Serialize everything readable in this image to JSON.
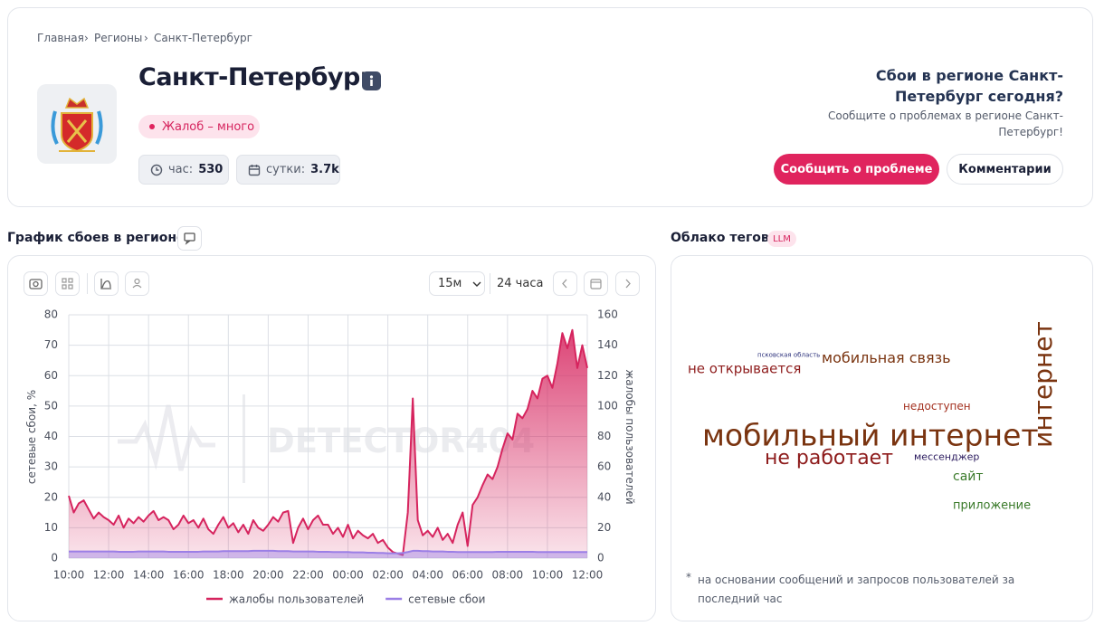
{
  "breadcrumbs": [
    "Главная",
    "Регионы",
    "Санкт-Петербург"
  ],
  "region": {
    "title": "Санкт-Петербург",
    "status": "Жалоб – много",
    "stats": [
      {
        "label": "час:",
        "value": 530
      },
      {
        "label": "сутки:",
        "value": "3.7k"
      }
    ]
  },
  "report": {
    "question": "Сбои в регионе Санкт-Петербург сегодня?",
    "text": "Сообщите о проблемах в регионе Санкт-Петербург!",
    "buttons": [
      "Сообщить о проблеме",
      "Комментарии"
    ]
  },
  "chart_section": {
    "title": "График сбоев в регионе",
    "interval": "15м",
    "range": "24 часа"
  },
  "chart_data": {
    "type": "line",
    "watermark": "DETECTOR404",
    "ylabel": "сетевые сбои, %",
    "y2label": "жалобы пользователей",
    "categories": [
      "10:00",
      null,
      null,
      null,
      null,
      null,
      null,
      null,
      "12:00",
      null,
      null,
      null,
      null,
      null,
      null,
      null,
      "14:00",
      null,
      null,
      null,
      null,
      null,
      null,
      null,
      "16:00",
      null,
      null,
      null,
      null,
      null,
      null,
      null,
      "18:00",
      null,
      null,
      null,
      null,
      null,
      null,
      null,
      "20:00",
      null,
      null,
      null,
      null,
      null,
      null,
      null,
      "22:00",
      null,
      null,
      null,
      null,
      null,
      null,
      null,
      "00:00",
      null,
      null,
      null,
      null,
      null,
      null,
      null,
      "02:00",
      null,
      null,
      null,
      null,
      null,
      null,
      null,
      "04:00",
      null,
      null,
      null,
      null,
      null,
      null,
      null,
      "06:00",
      null,
      null,
      null,
      null,
      null,
      null,
      null,
      "08:00",
      null,
      null,
      null,
      null,
      null,
      null,
      null,
      "10:00",
      null,
      null,
      null,
      null,
      null,
      null,
      null,
      "12:00"
    ],
    "series": [
      {
        "name": "жалобы пользователей",
        "color": "#d6245e",
        "axis": "y2",
        "values": [
          41,
          30,
          36,
          38,
          32,
          26,
          30,
          27,
          25,
          22,
          28,
          20,
          26,
          23,
          27,
          24,
          28,
          31,
          25,
          27,
          25,
          19,
          22,
          28,
          23,
          25,
          20,
          26,
          19,
          16,
          22,
          27,
          20,
          23,
          17,
          22,
          16,
          25,
          20,
          18,
          22,
          27,
          24,
          30,
          31,
          10,
          20,
          26,
          19,
          25,
          28,
          22,
          22,
          16,
          20,
          14,
          22,
          13,
          18,
          15,
          13,
          16,
          10,
          12,
          7,
          4,
          3,
          2,
          30,
          105,
          25,
          15,
          18,
          14,
          20,
          12,
          16,
          10,
          22,
          30,
          8,
          35,
          40,
          48,
          55,
          52,
          60,
          72,
          82,
          78,
          95,
          92,
          98,
          110,
          105,
          118,
          120,
          112,
          128,
          148,
          138,
          150,
          125,
          140,
          125
        ]
      },
      {
        "name": "сетевые сбои",
        "color": "#9b7fe6",
        "axis": "y",
        "values": [
          2.2,
          2.2,
          2.2,
          2.2,
          2.2,
          2.2,
          2.2,
          2.2,
          2.2,
          2.2,
          2.1,
          2.1,
          2.1,
          2.1,
          2.2,
          2.2,
          2.2,
          2.2,
          2.2,
          2.2,
          2.1,
          2.1,
          2.1,
          2.1,
          2.1,
          2.1,
          2.1,
          2.2,
          2.2,
          2.2,
          2.2,
          2.3,
          2.3,
          2.3,
          2.3,
          2.3,
          2.3,
          2.4,
          2.4,
          2.4,
          2.4,
          2.4,
          2.3,
          2.3,
          2.3,
          2.2,
          2.2,
          2.2,
          2.2,
          2.2,
          2.1,
          2.1,
          2.1,
          2.0,
          2.0,
          2.0,
          2.0,
          1.9,
          1.9,
          1.9,
          1.8,
          1.8,
          1.7,
          1.7,
          1.6,
          1.6,
          1.6,
          1.7,
          2.0,
          2.4,
          2.4,
          2.3,
          2.3,
          2.2,
          2.2,
          2.2,
          2.1,
          2.1,
          2.0,
          2.0,
          2.0,
          2.0,
          2.0,
          2.0,
          2.0,
          2.0,
          2.1,
          2.1,
          2.1,
          2.1,
          2.1,
          2.1,
          2.1,
          2.1,
          2.0,
          2.0,
          2.0,
          2.0,
          2.0,
          2.0,
          2.0,
          2.0,
          2.0,
          2.0,
          2.0
        ]
      }
    ],
    "ylim": [
      0,
      80
    ],
    "yticks": [
      0,
      10,
      20,
      30,
      40,
      50,
      60,
      70,
      80
    ],
    "y2lim": [
      0,
      160
    ],
    "y2ticks": [
      0,
      20,
      40,
      60,
      80,
      100,
      120,
      140,
      160
    ],
    "grid": true
  },
  "tag_cloud": {
    "title": "Облако тегов",
    "badge": "LLM",
    "tags": [
      {
        "text": "псковская область",
        "color": "#2a2f7a"
      },
      {
        "text": "мобильная связь",
        "color": "#7a3410"
      },
      {
        "text": "не открывается",
        "color": "#8e1c1c"
      },
      {
        "text": "интернет",
        "color": "#7a3410"
      },
      {
        "text": "недоступен",
        "color": "#a3301f"
      },
      {
        "text": "мобильный интернет",
        "color": "#7a3410"
      },
      {
        "text": "не работает",
        "color": "#8e1c1c"
      },
      {
        "text": "мессенджер",
        "color": "#2a1a5e"
      },
      {
        "text": "сайт",
        "color": "#3a7a2a"
      },
      {
        "text": "приложение",
        "color": "#3a7a2a"
      }
    ],
    "note_marker": "*",
    "note": "на основании сообщений и запросов пользователей за последний час"
  }
}
